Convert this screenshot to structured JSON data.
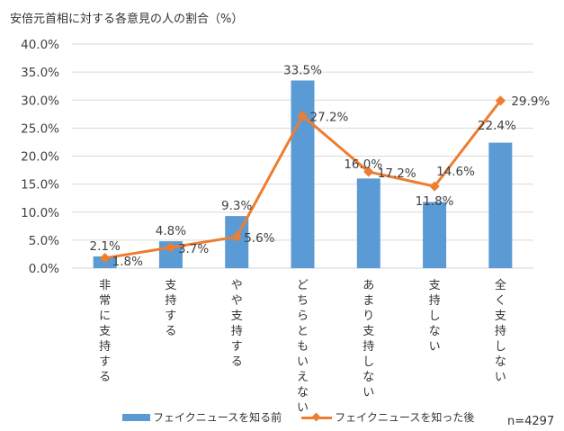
{
  "chart_data": {
    "type": "bar",
    "title": "安倍元首相に対する各意見の人の割合（%）",
    "xlabel": "",
    "ylabel": "",
    "ylim": [
      0,
      40
    ],
    "yticks": [
      "0.0%",
      "5.0%",
      "10.0%",
      "15.0%",
      "20.0%",
      "25.0%",
      "30.0%",
      "35.0%",
      "40.0%"
    ],
    "grid": true,
    "legend_position": "bottom",
    "categories": [
      "非常に支持する",
      "支持する",
      "やや支持する",
      "どちらともいえない",
      "あまり支持しない",
      "支持しない",
      "全く支持しない"
    ],
    "series": [
      {
        "name": "フェイクニュースを知る前",
        "type": "bar",
        "color": "#5B9BD5",
        "values": [
          2.1,
          4.8,
          9.3,
          33.5,
          16.0,
          11.8,
          22.4
        ],
        "labels": [
          "2.1%",
          "4.8%",
          "9.3%",
          "33.5%",
          "16.0%",
          "11.8%",
          "22.4%"
        ]
      },
      {
        "name": "フェイクニュースを知った後",
        "type": "line",
        "color": "#ED7D31",
        "values": [
          1.8,
          3.7,
          5.6,
          27.2,
          17.2,
          14.6,
          29.9
        ],
        "labels": [
          "1.8%",
          "3.7%",
          "5.6%",
          "27.2%",
          "17.2%",
          "14.6%",
          "29.9%"
        ]
      }
    ],
    "annotation": "n=4297"
  }
}
